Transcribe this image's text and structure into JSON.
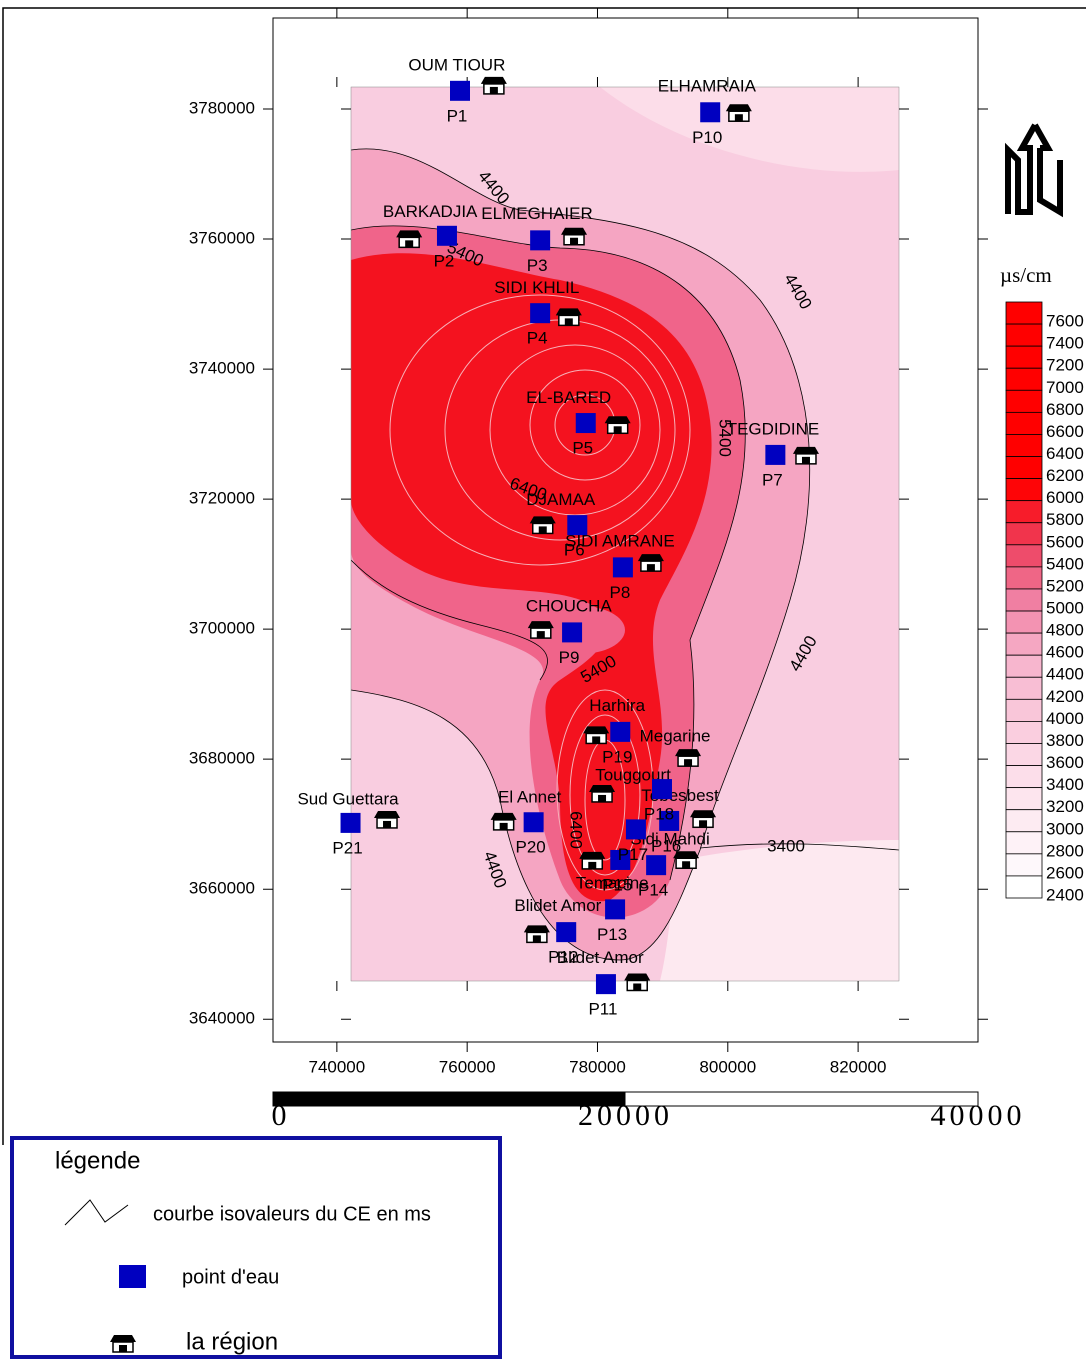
{
  "map": {
    "xlim": [
      730200,
      838400
    ],
    "ylim": [
      3636500,
      3794000
    ],
    "xticks": [
      740000,
      760000,
      780000,
      800000,
      820000
    ],
    "yticks": [
      3640000,
      3660000,
      3680000,
      3700000,
      3720000,
      3740000,
      3760000,
      3780000
    ],
    "points": [
      {
        "name": "P1",
        "x": 758900,
        "y": 3782800
      },
      {
        "name": "P2",
        "x": 756900,
        "y": 3760500
      },
      {
        "name": "P3",
        "x": 771200,
        "y": 3759800
      },
      {
        "name": "P4",
        "x": 771200,
        "y": 3748600
      },
      {
        "name": "P5",
        "x": 778200,
        "y": 3731700
      },
      {
        "name": "P6",
        "x": 776900,
        "y": 3716000
      },
      {
        "name": "P7",
        "x": 807300,
        "y": 3726800
      },
      {
        "name": "P8",
        "x": 783900,
        "y": 3709500
      },
      {
        "name": "P9",
        "x": 776100,
        "y": 3699500
      },
      {
        "name": "P10",
        "x": 797300,
        "y": 3779500
      },
      {
        "name": "P11",
        "x": 781300,
        "y": 3645400
      },
      {
        "name": "P12",
        "x": 775200,
        "y": 3653400
      },
      {
        "name": "P13",
        "x": 782700,
        "y": 3656900
      },
      {
        "name": "P14",
        "x": 789000,
        "y": 3663700
      },
      {
        "name": "P15",
        "x": 783500,
        "y": 3664500
      },
      {
        "name": "P16",
        "x": 791000,
        "y": 3670500
      },
      {
        "name": "P17",
        "x": 785900,
        "y": 3669200
      },
      {
        "name": "P18",
        "x": 789900,
        "y": 3675400
      },
      {
        "name": "P19",
        "x": 783500,
        "y": 3684200
      },
      {
        "name": "P20",
        "x": 770200,
        "y": 3670300
      },
      {
        "name": "P21",
        "x": 742100,
        "y": 3670200
      }
    ],
    "regions": [
      {
        "name": "OUM TIOUR",
        "x": 764100,
        "y": 3783400
      },
      {
        "name": "ELHAMRAIA",
        "x": 801700,
        "y": 3779200
      },
      {
        "name": "BARKADJIA",
        "x": 751100,
        "y": 3759800
      },
      {
        "name": "ELMEGHAIER",
        "x": 776400,
        "y": 3760200
      },
      {
        "name": "SIDI KHLIL",
        "x": 775600,
        "y": 3747800
      },
      {
        "name": "EL-BARED",
        "x": 783100,
        "y": 3731200
      },
      {
        "name": "TEGDIDINE",
        "x": 812000,
        "y": 3726500
      },
      {
        "name": "DJAMAA",
        "x": 771600,
        "y": 3715800
      },
      {
        "name": "SIDI AMRANE",
        "x": 788200,
        "y": 3710000
      },
      {
        "name": "CHOUCHA",
        "x": 771300,
        "y": 3699700
      },
      {
        "name": "Harhira",
        "x": 779800,
        "y": 3683500
      },
      {
        "name": "Megarine",
        "x": 793900,
        "y": 3680000
      },
      {
        "name": "Touggourt",
        "x": 780700,
        "y": 3674500
      },
      {
        "name": "Tebesbest",
        "x": 796200,
        "y": 3670600
      },
      {
        "name": "El Annet",
        "x": 765600,
        "y": 3670200
      },
      {
        "name": "Sud Guettara",
        "x": 747700,
        "y": 3670500
      },
      {
        "name": "Sidi Mahdi",
        "x": 793600,
        "y": 3664300
      },
      {
        "name": "Temacine",
        "x": 779200,
        "y": 3664200
      },
      {
        "name": "Blidet Amor",
        "x": 770700,
        "y": 3652900
      },
      {
        "name": "Blidet Amor",
        "x": 786100,
        "y": 3645500
      }
    ],
    "contour_labels": [
      4400,
      5400,
      4400,
      5400,
      6400,
      5400,
      4400,
      3400,
      4400,
      6400
    ],
    "colorbar": {
      "unit": "µs/cm",
      "levels": [
        7600,
        7400,
        7200,
        7000,
        6800,
        6600,
        6400,
        6200,
        6000,
        5800,
        5600,
        5400,
        5200,
        5000,
        4800,
        4600,
        4400,
        4200,
        4000,
        3800,
        3600,
        3400,
        3200,
        3000,
        2800,
        2600,
        2400
      ]
    },
    "scale_bar": {
      "lim": [
        0,
        40000
      ],
      "ticks": [
        0,
        20000,
        40000
      ]
    },
    "legend": {
      "title": "légende",
      "items": [
        "courbe isovaleurs du CE en ms",
        "point d'eau",
        "la région"
      ]
    }
  }
}
